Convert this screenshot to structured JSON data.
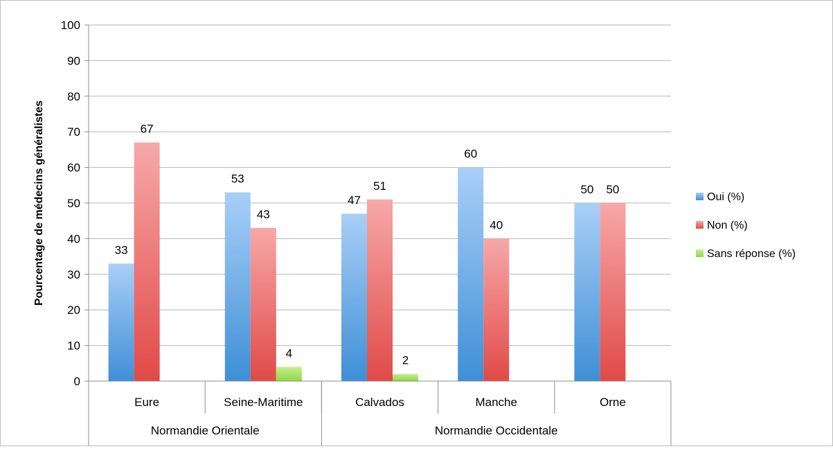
{
  "chart_data": {
    "type": "bar",
    "ylabel": "Pourcentage de médecins généralistes",
    "ylim": [
      0,
      100
    ],
    "ytick_step": 10,
    "ytick_labels": [
      "0",
      "10",
      "20",
      "30",
      "40",
      "50",
      "60",
      "70",
      "80",
      "90",
      "100"
    ],
    "grid": true,
    "legend_position": "right",
    "categories": [
      "Eure",
      "Seine-Maritime",
      "Calvados",
      "Manche",
      "Orne"
    ],
    "groups": [
      {
        "label": "Normandie Orientale",
        "categories": [
          "Eure",
          "Seine-Maritime"
        ]
      },
      {
        "label": "Normandie Occidentale",
        "categories": [
          "Calvados",
          "Manche",
          "Orne"
        ]
      }
    ],
    "series": [
      {
        "name": "Oui (%)",
        "values": [
          33,
          53,
          47,
          60,
          50
        ],
        "labels": [
          "33",
          "53",
          "47",
          "60",
          "50"
        ],
        "color_top": "#a9cff7",
        "color_bottom": "#3f8fd6"
      },
      {
        "name": "Non (%)",
        "values": [
          67,
          43,
          51,
          40,
          50
        ],
        "labels": [
          "67",
          "43",
          "51",
          "40",
          "50"
        ],
        "color_top": "#f7a8a8",
        "color_bottom": "#e04a48"
      },
      {
        "name": "Sans réponse (%)",
        "values": [
          null,
          4,
          2,
          null,
          null
        ],
        "labels": [
          "",
          "4",
          "2",
          "",
          ""
        ],
        "color_top": "#c6ef8c",
        "color_bottom": "#8fd646"
      }
    ]
  }
}
